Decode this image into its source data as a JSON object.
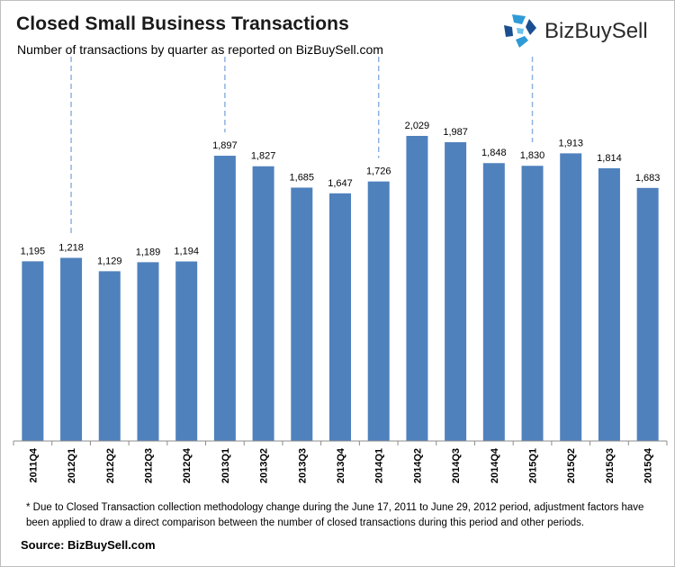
{
  "header": {
    "title": "Closed Small Business Transactions",
    "subtitle": "Number of transactions by quarter as reported on BizBuySell.com"
  },
  "logo": {
    "brand_name": "BizBuySell",
    "colors": [
      "#2e9bd6",
      "#1a4f8f",
      "#6cc4ea"
    ]
  },
  "colors": {
    "bar": "#4f81bd",
    "axis": "#8c8c8c",
    "divider": "#8db3e2",
    "label": "#000000"
  },
  "chart_data": {
    "type": "bar",
    "title": "Closed Small Business Transactions",
    "subtitle": "Number of transactions by quarter as reported on BizBuySell.com",
    "xlabel": "",
    "ylabel": "",
    "categories": [
      "2011Q4",
      "2012Q1",
      "2012Q2",
      "2012Q3",
      "2012Q4",
      "2013Q1",
      "2013Q2",
      "2013Q3",
      "2013Q4",
      "2014Q1",
      "2014Q2",
      "2014Q3",
      "2014Q4",
      "2015Q1",
      "2015Q2",
      "2015Q3",
      "2015Q4"
    ],
    "values": [
      1195,
      1218,
      1129,
      1189,
      1194,
      1897,
      1827,
      1685,
      1647,
      1726,
      2029,
      1987,
      1848,
      1830,
      1913,
      1814,
      1683
    ],
    "data_labels": [
      "1,195",
      "1,218",
      "1,129",
      "1,189",
      "1,194",
      "1,897",
      "1,827",
      "1,685",
      "1,647",
      "1,726",
      "2,029",
      "1,987",
      "1,848",
      "1,830",
      "1,913",
      "1,814",
      "1,683"
    ],
    "ylim": [
      0,
      2150
    ],
    "grid": false,
    "year_dividers_before": [
      "2012Q1",
      "2013Q1",
      "2014Q1",
      "2015Q1"
    ]
  },
  "footer": {
    "footnote": "* Due to Closed Transaction collection methodology change during the June 17, 2011 to June 29, 2012 period, adjustment factors have been applied to draw a direct comparison between the number of closed transactions during this period and other periods.",
    "source": "Source: BizBuySell.com"
  }
}
